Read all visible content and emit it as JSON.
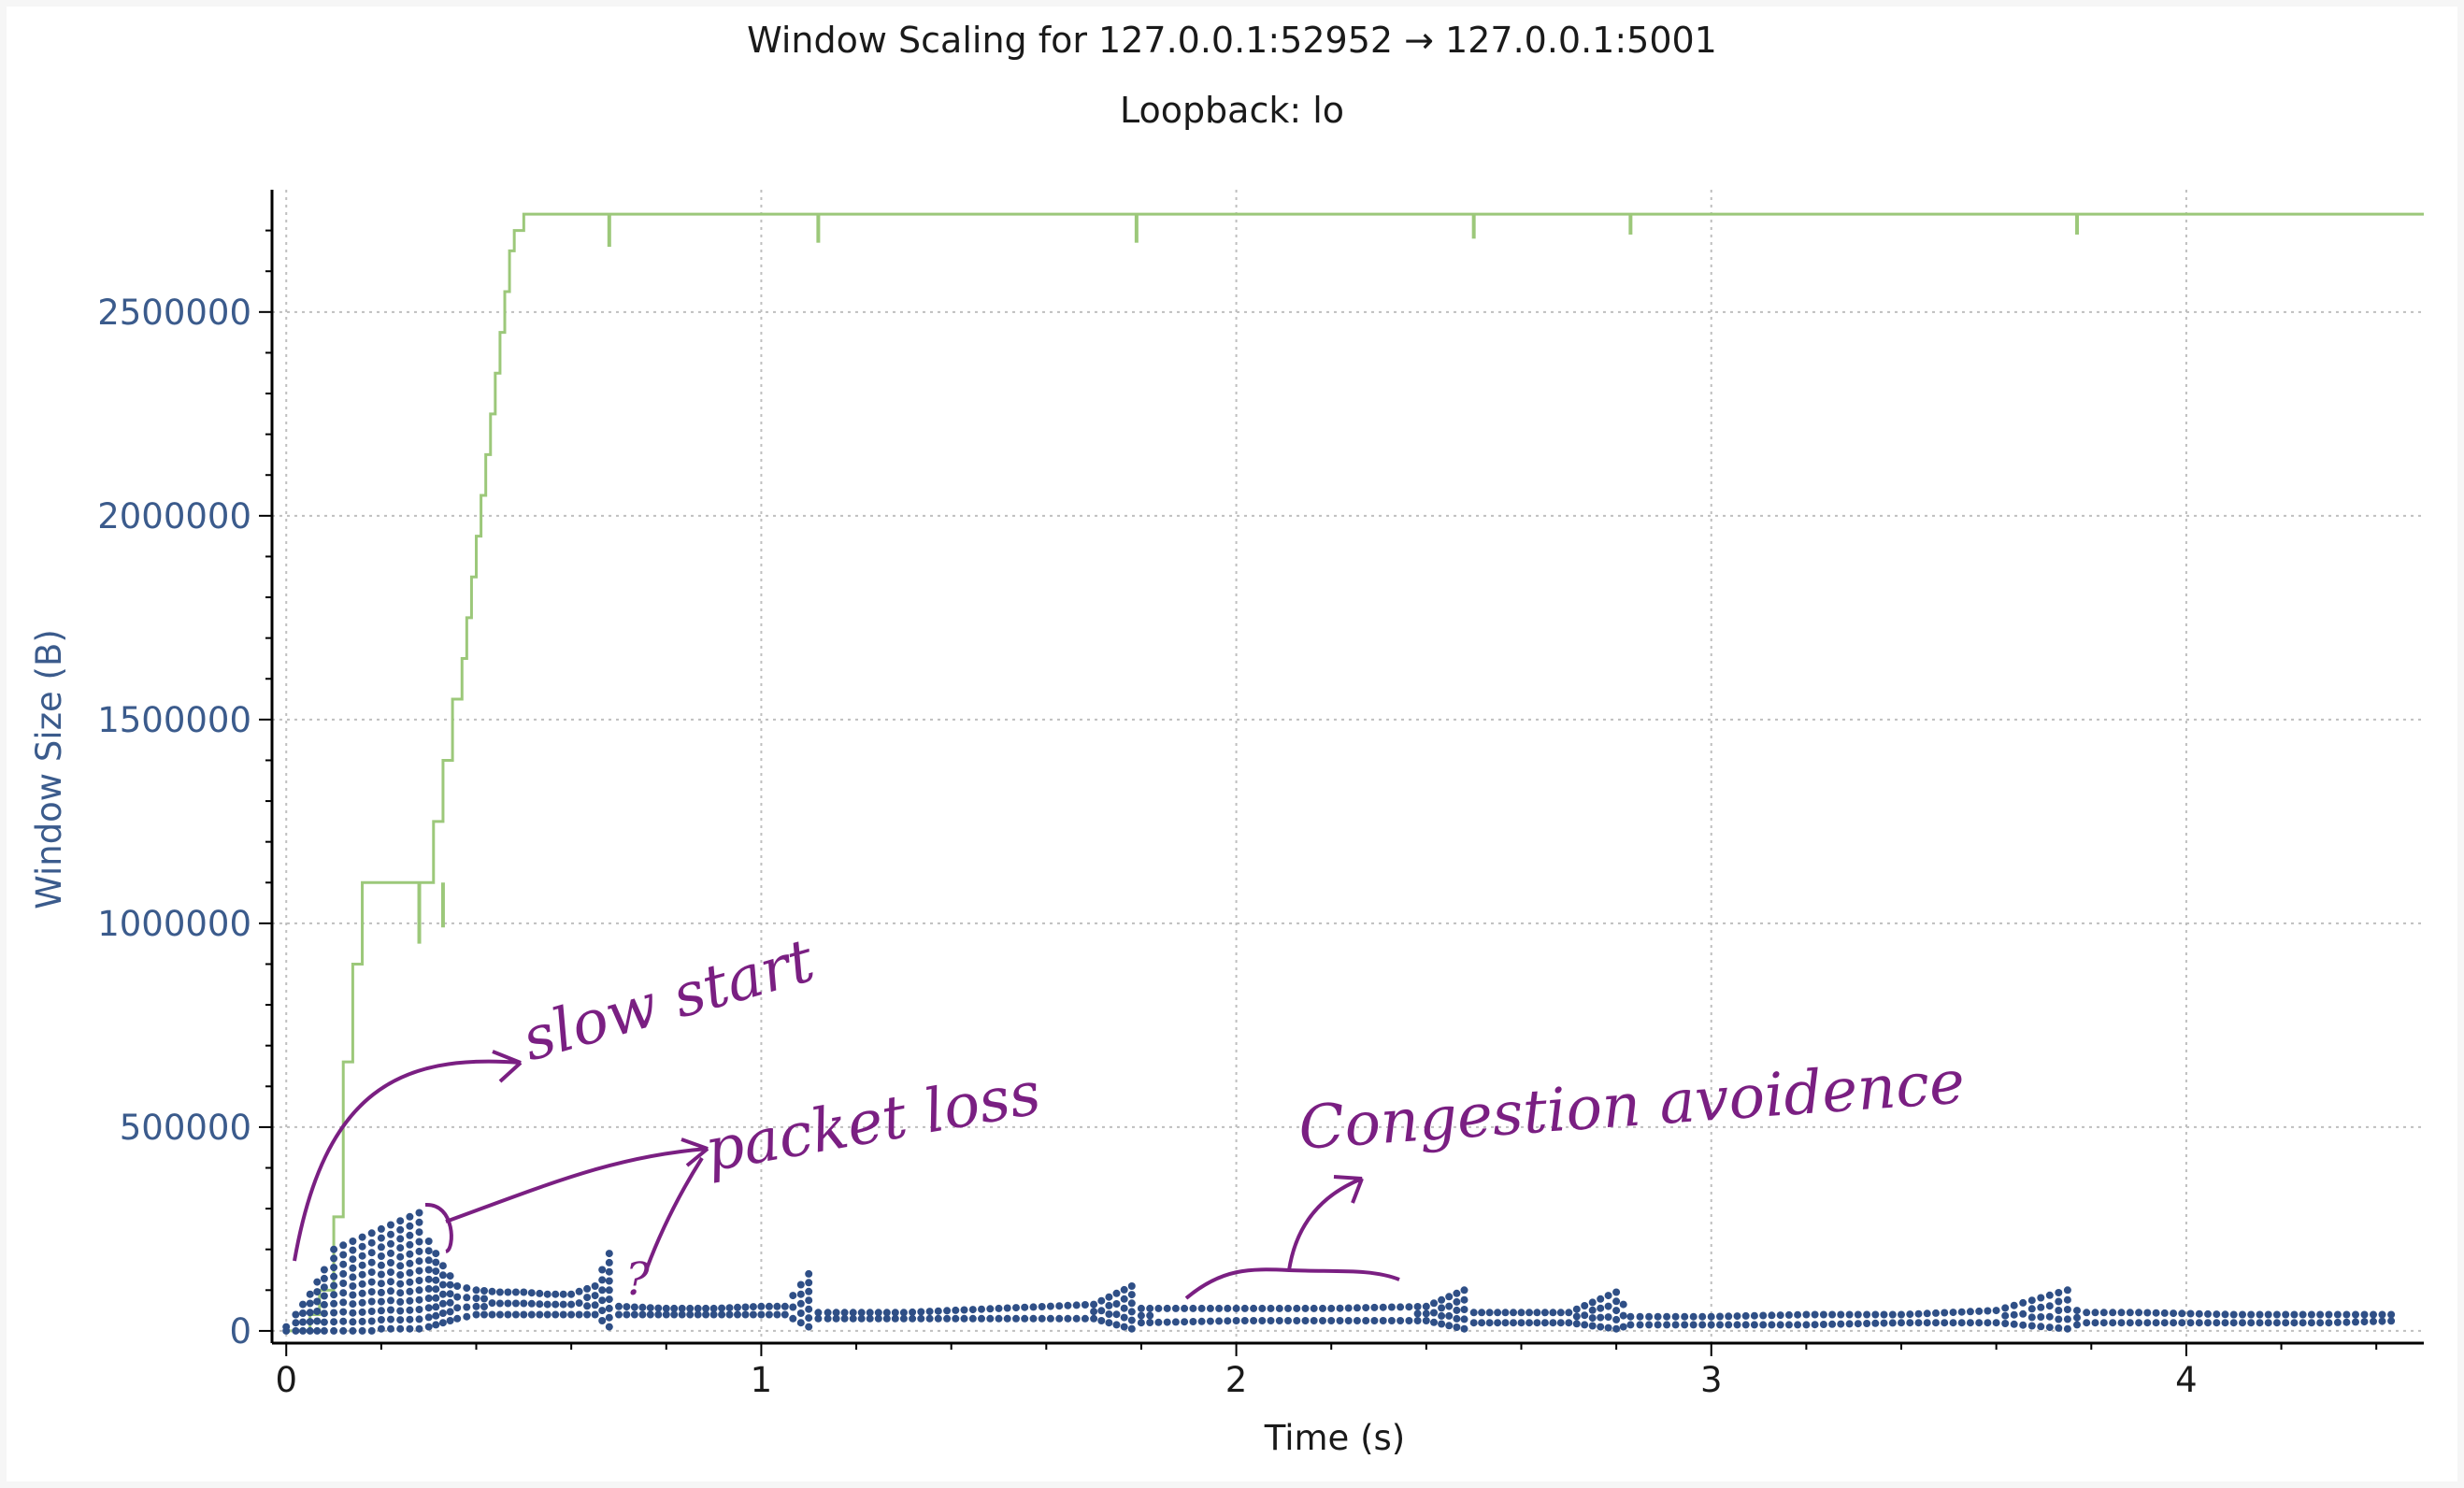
{
  "chart_data": {
    "type": "line",
    "title": "Window Scaling for 127.0.0.1:52952 → 127.0.0.1:5001",
    "subtitle": "Loopback: lo",
    "xlabel": "Time (s)",
    "ylabel": "Window Size (B)",
    "xlim": [
      -0.03,
      4.5
    ],
    "ylim": [
      -30000,
      2800000
    ],
    "x_ticks": [
      0,
      1,
      2,
      3,
      4
    ],
    "y_ticks": [
      0,
      500000,
      1000000,
      1500000,
      2000000,
      2500000
    ],
    "x_tick_labels": [
      "0",
      "1",
      "2",
      "3",
      "4"
    ],
    "y_tick_labels": [
      "0",
      "500000",
      "1000000",
      "1500000",
      "2000000",
      "2500000"
    ],
    "grid": true,
    "colors": {
      "window": "#9cc87a",
      "bytes_in_flight": "#2f4f86",
      "annotation": "#7a1f82",
      "grid": "#bfbfbf",
      "tick_label": "#3b5b8c"
    },
    "series": [
      {
        "style": "step",
        "color": "#9cc87a",
        "x": [
          0,
          0.05,
          0.07,
          0.1,
          0.12,
          0.14,
          0.16,
          0.3,
          0.31,
          0.33,
          0.35,
          0.37,
          0.38,
          0.39,
          0.4,
          0.41,
          0.42,
          0.43,
          0.44,
          0.45,
          0.46,
          0.47,
          0.48,
          0.5,
          4.5
        ],
        "y": [
          0,
          40000,
          100000,
          280000,
          660000,
          900000,
          1100000,
          1100000,
          1250000,
          1400000,
          1550000,
          1650000,
          1750000,
          1850000,
          1950000,
          2050000,
          2150000,
          2250000,
          2350000,
          2450000,
          2550000,
          2650000,
          2700000,
          2740000,
          2740000
        ],
        "dips": [
          {
            "x": 0.28,
            "y": 950000
          },
          {
            "x": 0.33,
            "y": 990000
          },
          {
            "x": 0.68,
            "y": 2660000
          },
          {
            "x": 1.12,
            "y": 2670000
          },
          {
            "x": 1.79,
            "y": 2670000
          },
          {
            "x": 2.5,
            "y": 2680000
          },
          {
            "x": 2.83,
            "y": 2690000
          },
          {
            "x": 3.77,
            "y": 2690000
          }
        ]
      },
      {
        "style": "scatter",
        "color": "#2f4f86",
        "x": [
          0.0,
          0.02,
          0.05,
          0.08,
          0.1,
          0.12,
          0.14,
          0.16,
          0.18,
          0.2,
          0.22,
          0.24,
          0.26,
          0.28,
          0.3,
          0.33,
          0.36,
          0.4,
          0.45,
          0.5,
          0.55,
          0.6,
          0.65,
          0.68,
          0.7,
          0.8,
          0.9,
          1.0,
          1.05,
          1.1,
          1.12,
          1.14,
          1.3,
          1.5,
          1.7,
          1.78,
          1.8,
          2.0,
          2.2,
          2.4,
          2.48,
          2.5,
          2.6,
          2.7,
          2.8,
          2.83,
          2.85,
          3.0,
          3.2,
          3.4,
          3.6,
          3.75,
          3.77,
          3.79,
          3.9,
          4.1,
          4.3,
          4.45
        ],
        "y_high": [
          10000,
          40000,
          90000,
          150000,
          200000,
          210000,
          220000,
          230000,
          240000,
          250000,
          260000,
          270000,
          280000,
          290000,
          220000,
          160000,
          110000,
          100000,
          95000,
          95000,
          90000,
          90000,
          110000,
          190000,
          60000,
          55000,
          55000,
          60000,
          60000,
          140000,
          45000,
          45000,
          45000,
          55000,
          65000,
          110000,
          55000,
          55000,
          55000,
          60000,
          100000,
          45000,
          45000,
          45000,
          95000,
          35000,
          35000,
          35000,
          40000,
          40000,
          50000,
          100000,
          50000,
          45000,
          45000,
          40000,
          40000,
          40000
        ],
        "y_low": [
          0,
          0,
          0,
          0,
          0,
          0,
          0,
          0,
          0,
          5000,
          5000,
          5000,
          5000,
          5000,
          10000,
          20000,
          30000,
          40000,
          40000,
          40000,
          40000,
          40000,
          40000,
          10000,
          40000,
          40000,
          40000,
          40000,
          40000,
          10000,
          30000,
          30000,
          30000,
          30000,
          30000,
          5000,
          20000,
          25000,
          25000,
          25000,
          5000,
          20000,
          20000,
          20000,
          5000,
          15000,
          15000,
          15000,
          15000,
          20000,
          20000,
          5000,
          15000,
          20000,
          20000,
          20000,
          20000,
          25000
        ]
      }
    ],
    "annotations": [
      {
        "text": "slow start"
      },
      {
        "text": "packet loss"
      },
      {
        "text": "?"
      },
      {
        "text": "Congestion avoidence"
      }
    ]
  }
}
